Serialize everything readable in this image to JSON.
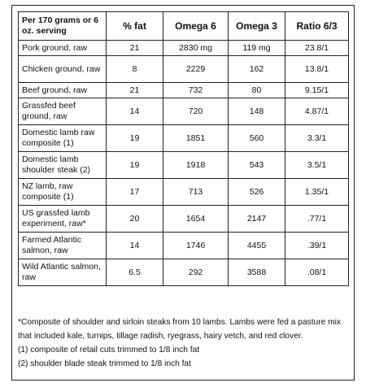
{
  "table": {
    "headers": [
      "Per 170 grams or 6 oz. serving",
      "% fat",
      "Omega 6",
      "Omega 3",
      "Ratio 6/3"
    ],
    "rows": [
      {
        "name": "Pork ground, raw",
        "fat": "21",
        "omega6": "2830 mg",
        "omega3": "119 mg",
        "ratio": "23.8/1"
      },
      {
        "name": "Chicken ground, raw",
        "fat": "8",
        "omega6": "2229",
        "omega3": "162",
        "ratio": "13.8/1"
      },
      {
        "name": "Beef ground, raw",
        "fat": "21",
        "omega6": "732",
        "omega3": "80",
        "ratio": "9.15/1"
      },
      {
        "name": "Grassfed beef ground, raw",
        "fat": "14",
        "omega6": "720",
        "omega3": "148",
        "ratio": "4.87/1"
      },
      {
        "name": "Domestic lamb raw composite (1)",
        "fat": "19",
        "omega6": "1851",
        "omega3": "560",
        "ratio": "3.3/1"
      },
      {
        "name": "Domestic lamb shoulder steak (2)",
        "fat": "19",
        "omega6": "1918",
        "omega3": "543",
        "ratio": "3.5/1"
      },
      {
        "name": "NZ lamb, raw composite (1)",
        "fat": "17",
        "omega6": "713",
        "omega3": "526",
        "ratio": "1.35/1"
      },
      {
        "name": "US grassfed lamb experiment, raw*",
        "fat": "20",
        "omega6": "1654",
        "omega3": "2147",
        "ratio": ".77/1"
      },
      {
        "name": "Farmed Atlantic salmon, raw",
        "fat": "14",
        "omega6": "1746",
        "omega3": "4455",
        "ratio": ".39/1"
      },
      {
        "name": "Wild Atlantic salmon, raw",
        "fat": "6.5",
        "omega6": "292",
        "omega3": "3588",
        "ratio": ".08/1"
      }
    ]
  },
  "footnotes": {
    "star": "*Composite of shoulder and sirloin steaks from 10 lambs. Lambs were fed a pasture mix that included kale, turnips, tillage radish, ryegrass, hairy vetch, and red clover.",
    "note1": "(1) composite of retail cuts trimmed to 1/8 inch fat",
    "note2": "(2) shoulder blade steak trimmed to 1/8 inch fat"
  }
}
